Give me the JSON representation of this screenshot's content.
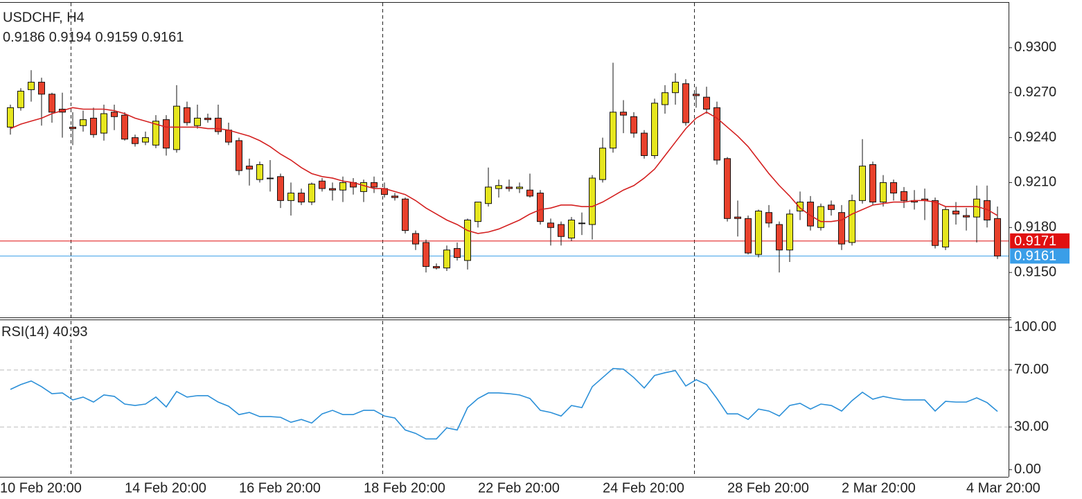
{
  "chart_data": [
    {
      "type": "candlestick",
      "title": "USDCHF, H4",
      "categories": [
        "10 Feb 20:00",
        null,
        null,
        null,
        null,
        null,
        null,
        null,
        null,
        null,
        null,
        null,
        "14 Feb 20:00",
        null,
        null,
        null,
        null,
        null,
        null,
        null,
        null,
        null,
        null,
        "16 Feb 20:00",
        null,
        null,
        null,
        null,
        null,
        null,
        null,
        null,
        null,
        null,
        null,
        "18 Feb 20:00",
        null,
        null,
        null,
        null,
        null,
        null,
        null,
        null,
        null,
        null,
        "22 Feb 20:00",
        null,
        null,
        null,
        null,
        null,
        null,
        null,
        null,
        null,
        null,
        null,
        "24 Feb 20:00",
        null,
        null,
        null,
        null,
        null,
        null,
        null,
        null,
        null,
        null,
        null,
        "28 Feb 20:00",
        null,
        null,
        null,
        null,
        null,
        null,
        null,
        null,
        null,
        null,
        "2 Mar 20:00",
        null,
        null,
        null,
        null,
        null,
        null,
        null,
        null,
        null,
        null,
        null,
        "4 Mar 20:00",
        null,
        null
      ],
      "open": [
        0.9247,
        0.926,
        0.9272,
        0.9277,
        0.9269,
        0.9259,
        0.9247,
        0.9248,
        0.9253,
        0.9243,
        0.9257,
        0.9255,
        0.924,
        0.9237,
        0.9235,
        0.9252,
        0.9232,
        0.926,
        0.9248,
        0.9253,
        0.9253,
        0.9245,
        0.9238,
        0.9221,
        0.9212,
        0.9213,
        0.9214,
        0.9198,
        0.9203,
        0.9197,
        0.9211,
        0.9206,
        0.9205,
        0.921,
        0.9204,
        0.921,
        0.9206,
        0.9201,
        0.9199,
        0.9176,
        0.917,
        0.9154,
        0.9153,
        0.9166,
        0.9158,
        0.9184,
        0.9196,
        0.9206,
        0.9207,
        0.9206,
        0.9205,
        0.9203,
        0.9183,
        0.9182,
        0.9173,
        0.9183,
        0.9182,
        0.9212,
        0.9233,
        0.9257,
        0.9254,
        0.9243,
        0.9228,
        0.9262,
        0.927,
        0.9276,
        0.9269,
        0.9267,
        0.926,
        0.9226,
        0.9187,
        0.9186,
        0.9162,
        0.919,
        0.9182,
        0.9165,
        0.9191,
        0.9197,
        0.918,
        0.9195,
        0.919,
        0.917,
        0.9198,
        0.9222,
        0.9197,
        0.921,
        0.9204,
        0.9198,
        0.9199,
        0.9198,
        0.9167,
        0.9191,
        0.9188,
        0.9187,
        0.9198,
        0.9186
      ],
      "high": [
        0.9262,
        0.9273,
        0.9285,
        0.928,
        0.927,
        0.927,
        0.9257,
        0.9258,
        0.926,
        0.9262,
        0.9262,
        0.9257,
        0.9242,
        0.9244,
        0.9255,
        0.9255,
        0.9275,
        0.9264,
        0.9262,
        0.9256,
        0.9262,
        0.925,
        0.924,
        0.9226,
        0.9224,
        0.9225,
        0.9216,
        0.921,
        0.9206,
        0.921,
        0.9213,
        0.921,
        0.9214,
        0.9213,
        0.9212,
        0.9214,
        0.921,
        0.9203,
        0.92,
        0.9178,
        0.9172,
        0.9156,
        0.9168,
        0.917,
        0.9186,
        0.9197,
        0.922,
        0.9212,
        0.9212,
        0.921,
        0.9216,
        0.9205,
        0.9186,
        0.9184,
        0.9187,
        0.919,
        0.9215,
        0.924,
        0.929,
        0.9265,
        0.9257,
        0.9245,
        0.9266,
        0.9275,
        0.9283,
        0.9279,
        0.9274,
        0.9274,
        0.9264,
        0.9227,
        0.9198,
        0.9188,
        0.9192,
        0.9195,
        0.9184,
        0.9192,
        0.9204,
        0.9201,
        0.9196,
        0.9198,
        0.9195,
        0.9202,
        0.9239,
        0.9224,
        0.9215,
        0.9212,
        0.9207,
        0.9205,
        0.9206,
        0.92,
        0.9194,
        0.9197,
        0.9193,
        0.9208,
        0.9208,
        0.9194
      ],
      "low": [
        0.9242,
        0.9258,
        0.9264,
        0.9248,
        0.925,
        0.924,
        0.9235,
        0.9244,
        0.924,
        0.9238,
        0.9245,
        0.9238,
        0.9234,
        0.9235,
        0.9233,
        0.9228,
        0.923,
        0.9248,
        0.9246,
        0.925,
        0.9242,
        0.9235,
        0.9215,
        0.9208,
        0.921,
        0.9204,
        0.9193,
        0.9188,
        0.9195,
        0.9195,
        0.9204,
        0.9198,
        0.9197,
        0.9202,
        0.9197,
        0.9203,
        0.92,
        0.9198,
        0.9176,
        0.9165,
        0.915,
        0.9152,
        0.9151,
        0.9158,
        0.9152,
        0.918,
        0.9194,
        0.92,
        0.9204,
        0.9203,
        0.92,
        0.9182,
        0.9168,
        0.9168,
        0.9171,
        0.9175,
        0.9172,
        0.921,
        0.923,
        0.9243,
        0.924,
        0.9226,
        0.9226,
        0.9256,
        0.9262,
        0.9248,
        0.926,
        0.9256,
        0.9222,
        0.9184,
        0.9174,
        0.9162,
        0.916,
        0.918,
        0.915,
        0.9157,
        0.9185,
        0.9178,
        0.9178,
        0.9188,
        0.9165,
        0.9168,
        0.9196,
        0.9195,
        0.9194,
        0.9198,
        0.9193,
        0.9192,
        0.9185,
        0.9166,
        0.9165,
        0.9182,
        0.9178,
        0.917,
        0.918,
        0.9159
      ],
      "close": [
        0.926,
        0.9271,
        0.9277,
        0.9269,
        0.9257,
        0.9257,
        0.9246,
        0.9252,
        0.9242,
        0.9256,
        0.9254,
        0.9239,
        0.9236,
        0.924,
        0.9251,
        0.9233,
        0.9261,
        0.925,
        0.9253,
        0.9252,
        0.9244,
        0.9237,
        0.9218,
        0.9219,
        0.9222,
        0.9213,
        0.9198,
        0.9203,
        0.9197,
        0.9209,
        0.9206,
        0.9205,
        0.921,
        0.9207,
        0.921,
        0.9207,
        0.9202,
        0.92,
        0.9178,
        0.9169,
        0.9154,
        0.9153,
        0.9165,
        0.916,
        0.9185,
        0.9197,
        0.9207,
        0.9208,
        0.9206,
        0.9207,
        0.9201,
        0.9184,
        0.918,
        0.9174,
        0.9185,
        0.9183,
        0.9213,
        0.9233,
        0.9257,
        0.9255,
        0.9243,
        0.9228,
        0.9263,
        0.927,
        0.9277,
        0.925,
        0.9268,
        0.9259,
        0.9225,
        0.9186,
        0.9186,
        0.9163,
        0.9191,
        0.9183,
        0.9165,
        0.9189,
        0.9197,
        0.9181,
        0.9194,
        0.9192,
        0.9169,
        0.9198,
        0.9221,
        0.9197,
        0.921,
        0.9203,
        0.9198,
        0.9197,
        0.9198,
        0.9168,
        0.9192,
        0.9189,
        0.9187,
        0.9199,
        0.9185,
        0.9161
      ],
      "up_color": "#e6e61e",
      "down_color": "#e8412c",
      "ma": {
        "color": "#d42020",
        "values": [
          0.9246,
          0.9249,
          0.9251,
          0.9253,
          0.9256,
          0.9258,
          0.926,
          0.9259,
          0.9259,
          0.9259,
          0.9258,
          0.9256,
          0.9253,
          0.9251,
          0.9249,
          0.9247,
          0.9247,
          0.9247,
          0.9247,
          0.9246,
          0.9246,
          0.9245,
          0.9243,
          0.9241,
          0.9238,
          0.9234,
          0.9229,
          0.9225,
          0.922,
          0.9216,
          0.9214,
          0.9213,
          0.9211,
          0.921,
          0.9208,
          0.9206,
          0.9206,
          0.9204,
          0.9202,
          0.9198,
          0.9193,
          0.9189,
          0.9185,
          0.9182,
          0.9178,
          0.9176,
          0.9177,
          0.9179,
          0.9182,
          0.9185,
          0.9189,
          0.9192,
          0.9193,
          0.9195,
          0.9195,
          0.9194,
          0.9194,
          0.9197,
          0.9201,
          0.9205,
          0.9208,
          0.9213,
          0.9219,
          0.9228,
          0.9237,
          0.9246,
          0.9253,
          0.9257,
          0.9253,
          0.9247,
          0.9241,
          0.9234,
          0.9225,
          0.9216,
          0.9208,
          0.9201,
          0.9193,
          0.9188,
          0.9184,
          0.9184,
          0.9185,
          0.9189,
          0.9192,
          0.9195,
          0.9196,
          0.9197,
          0.9197,
          0.9198,
          0.9198,
          0.9197,
          0.9194,
          0.9194,
          0.9194,
          0.9194,
          0.9192,
          0.9188
        ]
      },
      "ask": {
        "value": 0.9171,
        "color": "#e01010"
      },
      "bid_color": "#3a9ee8",
      "ylim": [
        0.912,
        0.933
      ],
      "yticks": [
        {
          "value": 0.915,
          "label": "0.9150"
        },
        {
          "value": 0.918,
          "label": "0.9180"
        },
        {
          "value": 0.921,
          "label": "0.9210"
        },
        {
          "value": 0.924,
          "label": "0.9240"
        },
        {
          "value": 0.927,
          "label": "0.9270"
        },
        {
          "value": 0.93,
          "label": "0.9300"
        }
      ]
    },
    {
      "type": "line",
      "title": "RSI(14)",
      "series": [
        {
          "color": "#2a8fd8",
          "values": [
            56.4,
            59.8,
            62.3,
            58.3,
            53.4,
            53.9,
            49.0,
            51.0,
            47.5,
            52.5,
            51.5,
            46.1,
            45.1,
            46.1,
            51.0,
            44.1,
            54.9,
            51.0,
            52.0,
            52.0,
            47.5,
            44.6,
            38.7,
            40.2,
            37.3,
            37.3,
            36.8,
            33.3,
            35.3,
            32.8,
            39.2,
            41.7,
            38.7,
            38.7,
            41.7,
            41.7,
            37.7,
            36.3,
            27.9,
            25.5,
            21.6,
            21.6,
            29.4,
            27.9,
            43.6,
            50.0,
            53.9,
            53.9,
            53.4,
            52.5,
            50.0,
            41.7,
            40.2,
            37.7,
            45.1,
            43.6,
            58.3,
            64.7,
            71.1,
            70.6,
            64.7,
            57.4,
            66.2,
            68.1,
            69.6,
            58.8,
            63.2,
            59.8,
            50.0,
            39.2,
            39.2,
            35.3,
            42.6,
            41.2,
            37.7,
            45.1,
            46.6,
            42.6,
            46.1,
            45.1,
            41.2,
            48.5,
            54.4,
            49.5,
            51.5,
            50.0,
            49.0,
            49.0,
            49.0,
            41.2,
            48.0,
            47.5,
            47.5,
            50.5,
            47.1,
            40.93
          ]
        }
      ],
      "ylim": [
        -5,
        105
      ],
      "yticks": [
        {
          "value": 0,
          "label": "0.00"
        },
        {
          "value": 30,
          "label": "30.00"
        },
        {
          "value": 70,
          "label": "70.00"
        },
        {
          "value": 100,
          "label": "100.00"
        }
      ]
    }
  ]
}
